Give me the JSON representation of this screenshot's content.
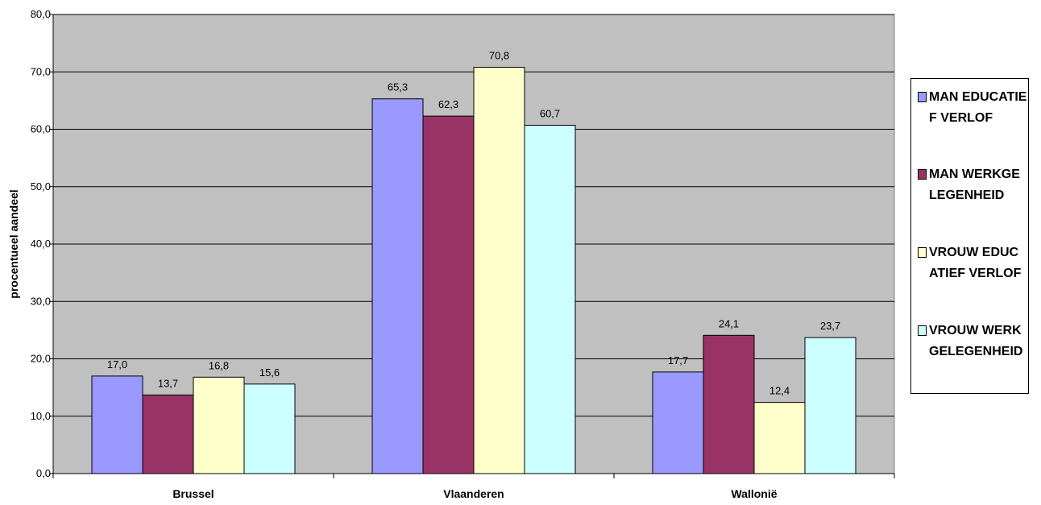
{
  "chart_data": {
    "type": "bar",
    "ylabel": "procentueel aandeel",
    "ylim": [
      0,
      80
    ],
    "yticks": [
      "0,0",
      "10,0",
      "20,0",
      "30,0",
      "40,0",
      "50,0",
      "60,0",
      "70,0",
      "80,0"
    ],
    "categories": [
      "Brussel",
      "Vlaanderen",
      "Wallonië"
    ],
    "series": [
      {
        "name": "MAN EDUCATIEF VERLOF",
        "values": [
          17.0,
          65.3,
          17.7
        ],
        "labels": [
          "17,0",
          "65,3",
          "17,7"
        ],
        "color": "#9999ff"
      },
      {
        "name": "MAN WERKGELEGENHEID",
        "values": [
          13.7,
          62.3,
          24.1
        ],
        "labels": [
          "13,7",
          "62,3",
          "24,1"
        ],
        "color": "#993366"
      },
      {
        "name": "VROUW EDUCATIEF VERLOF",
        "values": [
          16.8,
          70.8,
          12.4
        ],
        "labels": [
          "16,8",
          "70,8",
          "12,4"
        ],
        "color": "#ffffcc"
      },
      {
        "name": "VROUW WERKGELEGENHEID",
        "values": [
          15.6,
          60.7,
          23.7
        ],
        "labels": [
          "15,6",
          "60,7",
          "23,7"
        ],
        "color": "#ccffff"
      }
    ],
    "legend_position": "right",
    "grid": true,
    "plot_background": "#c0c0c0"
  },
  "legend": {
    "items": [
      {
        "label": "MAN EDUCATIEF VERLOF",
        "color": "#9999ff"
      },
      {
        "label": "MAN WERKGELEGENHEID",
        "color": "#993366"
      },
      {
        "label": "VROUW EDUCATIEF VERLOF",
        "color": "#ffffcc"
      },
      {
        "label": "VROUW WERKGELEGENHEID",
        "color": "#ccffff"
      }
    ]
  }
}
